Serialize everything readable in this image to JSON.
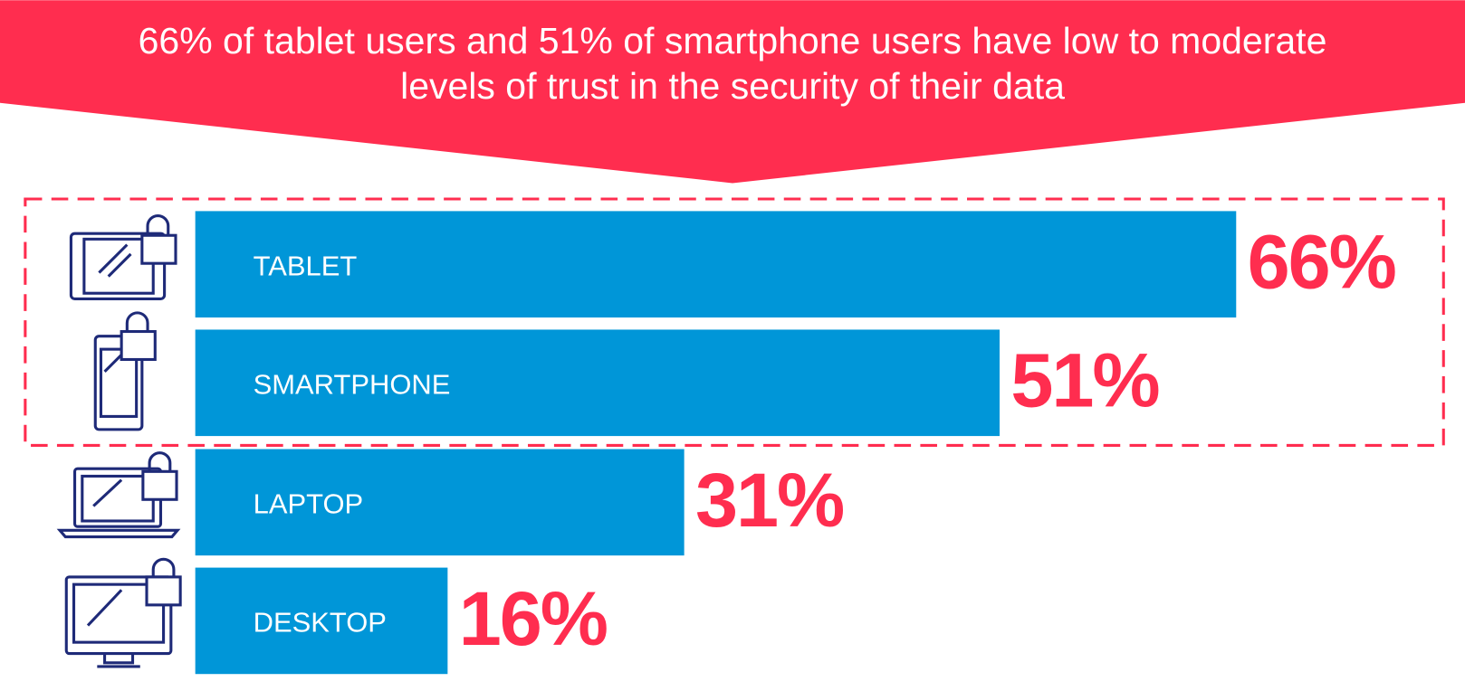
{
  "chart_data": {
    "type": "bar",
    "title": "66% of tablet users and 51% of smartphone users have low to moderate levels of trust in the security of their data",
    "categories": [
      "TABLET",
      "SMARTPHONE",
      "LAPTOP",
      "DESKTOP"
    ],
    "values": [
      66,
      51,
      31,
      16
    ],
    "value_labels": [
      "66%",
      "51%",
      "31%",
      "16%"
    ],
    "color": "#0096d8"
  }
}
